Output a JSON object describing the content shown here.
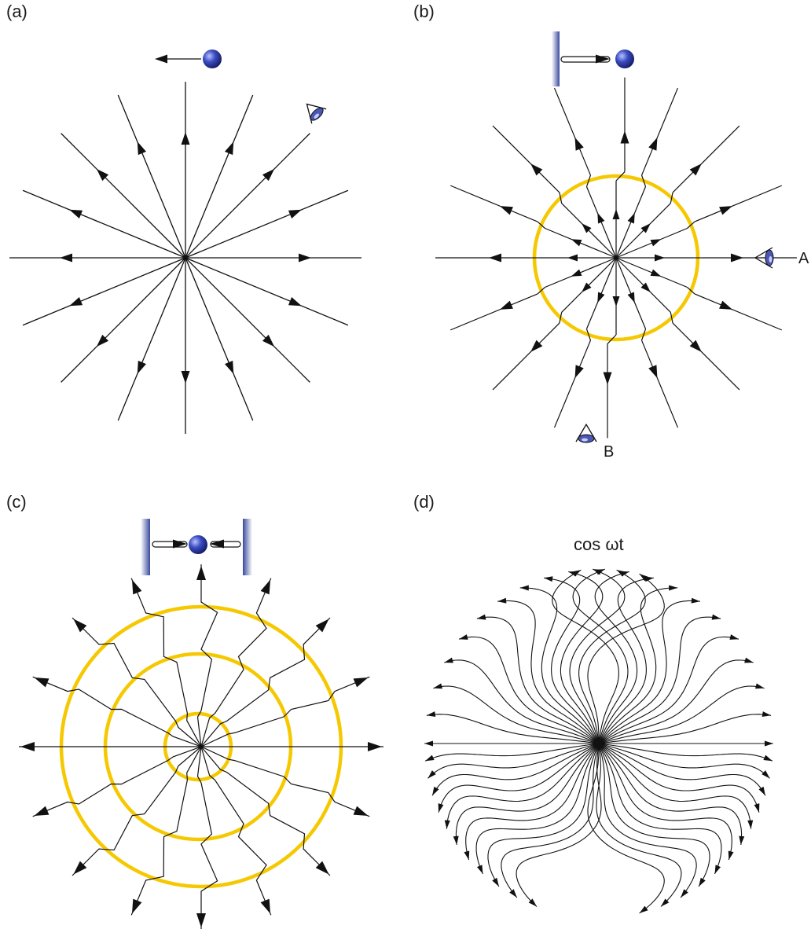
{
  "panels": {
    "a": {
      "label": "(a)"
    },
    "b": {
      "label": "(b)",
      "observer_a": "A",
      "observer_b": "B"
    },
    "c": {
      "label": "(c)"
    },
    "d": {
      "label": "(d)",
      "caption": "cos ωt"
    }
  },
  "colors": {
    "line": "#111111",
    "pulse": "#f5c800",
    "charge": "#2b3a9c",
    "wall": "#4a56a8"
  },
  "icons": [
    "charge-icon",
    "eye-icon",
    "wall-icon",
    "arrow-icon"
  ]
}
